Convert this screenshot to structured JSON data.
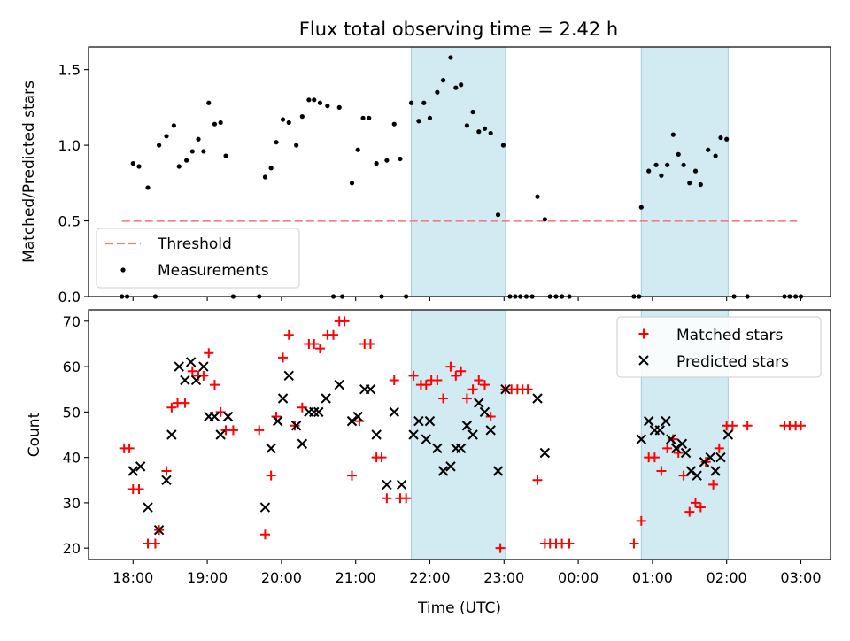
{
  "title": "Flux total observing time = 2.42 h",
  "colors": {
    "measurements": "#000000",
    "threshold": "#f08080",
    "matched": "#ff0000",
    "predicted": "#000000",
    "window": "#add8e6"
  },
  "chart_data": [
    {
      "type": "scatter",
      "panel": "top",
      "ylabel": "Matched/Predicted stars",
      "xlabel": "",
      "xlim_hours": [
        17.4,
        27.4
      ],
      "ylim": [
        0,
        1.65
      ],
      "yticks": [
        0.0,
        0.5,
        1.0,
        1.5
      ],
      "ytick_labels": [
        "0.0",
        "0.5",
        "1.0",
        "1.5"
      ],
      "shaded_windows_hours": [
        [
          21.75,
          23.02
        ],
        [
          24.85,
          26.02
        ]
      ],
      "threshold": {
        "name": "Threshold",
        "value": 0.5,
        "x_range_hours": [
          17.85,
          26.95
        ]
      },
      "legend": [
        "Threshold",
        "Measurements"
      ],
      "legend_location": "lower-left",
      "series": [
        {
          "name": "Measurements",
          "points": [
            [
              17.85,
              0
            ],
            [
              17.92,
              0
            ],
            [
              18.0,
              0.88
            ],
            [
              18.08,
              0.86
            ],
            [
              18.2,
              0.72
            ],
            [
              18.3,
              0
            ],
            [
              18.35,
              1.0
            ],
            [
              18.45,
              1.06
            ],
            [
              18.55,
              1.13
            ],
            [
              18.62,
              0.86
            ],
            [
              18.72,
              0.9
            ],
            [
              18.8,
              0.96
            ],
            [
              18.88,
              1.04
            ],
            [
              18.95,
              0.96
            ],
            [
              19.02,
              1.28
            ],
            [
              19.1,
              1.14
            ],
            [
              19.18,
              1.15
            ],
            [
              19.25,
              0.93
            ],
            [
              19.35,
              0
            ],
            [
              19.7,
              0
            ],
            [
              19.78,
              0.79
            ],
            [
              19.86,
              0.85
            ],
            [
              19.93,
              1.02
            ],
            [
              20.02,
              1.17
            ],
            [
              20.1,
              1.15
            ],
            [
              20.2,
              1.0
            ],
            [
              20.28,
              1.19
            ],
            [
              20.37,
              1.3
            ],
            [
              20.44,
              1.3
            ],
            [
              20.52,
              1.28
            ],
            [
              20.62,
              1.26
            ],
            [
              20.7,
              0
            ],
            [
              20.78,
              1.25
            ],
            [
              20.82,
              0
            ],
            [
              20.95,
              0.75
            ],
            [
              21.03,
              0.97
            ],
            [
              21.1,
              1.18
            ],
            [
              21.18,
              1.18
            ],
            [
              21.28,
              0.88
            ],
            [
              21.35,
              0
            ],
            [
              21.42,
              0.9
            ],
            [
              21.52,
              1.14
            ],
            [
              21.6,
              0.91
            ],
            [
              21.68,
              0
            ],
            [
              21.75,
              1.28
            ],
            [
              21.85,
              1.16
            ],
            [
              21.92,
              1.28
            ],
            [
              22.0,
              1.18
            ],
            [
              22.1,
              1.35
            ],
            [
              22.18,
              1.43
            ],
            [
              22.28,
              1.58
            ],
            [
              22.35,
              1.38
            ],
            [
              22.42,
              1.4
            ],
            [
              22.5,
              1.13
            ],
            [
              22.58,
              1.22
            ],
            [
              22.66,
              1.09
            ],
            [
              22.74,
              1.11
            ],
            [
              22.82,
              1.08
            ],
            [
              22.92,
              0.54
            ],
            [
              22.99,
              1.0
            ],
            [
              23.08,
              0
            ],
            [
              23.15,
              0
            ],
            [
              23.22,
              0
            ],
            [
              23.3,
              0
            ],
            [
              23.38,
              0
            ],
            [
              23.45,
              0.66
            ],
            [
              23.55,
              0.51
            ],
            [
              23.62,
              0
            ],
            [
              23.7,
              0
            ],
            [
              23.78,
              0
            ],
            [
              23.88,
              0
            ],
            [
              24.75,
              0
            ],
            [
              24.82,
              0
            ],
            [
              24.85,
              0.59
            ],
            [
              24.95,
              0.83
            ],
            [
              25.05,
              0.87
            ],
            [
              25.12,
              0.8
            ],
            [
              25.2,
              0.87
            ],
            [
              25.28,
              1.07
            ],
            [
              25.35,
              0.94
            ],
            [
              25.42,
              0.87
            ],
            [
              25.5,
              0.75
            ],
            [
              25.58,
              0.83
            ],
            [
              25.65,
              0.74
            ],
            [
              25.75,
              0.97
            ],
            [
              25.85,
              0.93
            ],
            [
              25.92,
              1.05
            ],
            [
              26.0,
              1.04
            ],
            [
              26.1,
              0
            ],
            [
              26.28,
              0
            ],
            [
              26.78,
              0
            ],
            [
              26.85,
              0
            ],
            [
              26.93,
              0
            ],
            [
              27.0,
              0
            ]
          ]
        }
      ]
    },
    {
      "type": "scatter",
      "panel": "bottom",
      "ylabel": "Count",
      "xlabel": "Time (UTC)",
      "xlim_hours": [
        17.4,
        27.4
      ],
      "ylim": [
        17.5,
        72.5
      ],
      "yticks": [
        20,
        30,
        40,
        50,
        60,
        70
      ],
      "ytick_labels": [
        "20",
        "30",
        "40",
        "50",
        "60",
        "70"
      ],
      "xticks_hours": [
        18,
        19,
        20,
        21,
        22,
        23,
        24,
        25,
        26,
        27
      ],
      "xtick_labels": [
        "18:00",
        "19:00",
        "20:00",
        "21:00",
        "22:00",
        "23:00",
        "00:00",
        "01:00",
        "02:00",
        "03:00"
      ],
      "shaded_windows_hours": [
        [
          21.75,
          23.02
        ],
        [
          24.85,
          26.02
        ]
      ],
      "legend": [
        "Matched stars",
        "Predicted stars"
      ],
      "legend_location": "upper-right",
      "series": [
        {
          "name": "Matched stars",
          "marker": "+",
          "points": [
            [
              17.88,
              42
            ],
            [
              17.95,
              42
            ],
            [
              18.0,
              33
            ],
            [
              18.08,
              33
            ],
            [
              18.2,
              21
            ],
            [
              18.3,
              21
            ],
            [
              18.35,
              24
            ],
            [
              18.45,
              37
            ],
            [
              18.52,
              51
            ],
            [
              18.6,
              52
            ],
            [
              18.7,
              52
            ],
            [
              18.8,
              59
            ],
            [
              18.88,
              58
            ],
            [
              18.95,
              58
            ],
            [
              19.02,
              63
            ],
            [
              19.1,
              56
            ],
            [
              19.18,
              50
            ],
            [
              19.25,
              46
            ],
            [
              19.35,
              46
            ],
            [
              19.7,
              46
            ],
            [
              19.78,
              23
            ],
            [
              19.86,
              36
            ],
            [
              19.93,
              49
            ],
            [
              20.02,
              62
            ],
            [
              20.1,
              67
            ],
            [
              20.18,
              47
            ],
            [
              20.28,
              51
            ],
            [
              20.37,
              65
            ],
            [
              20.44,
              65
            ],
            [
              20.52,
              64
            ],
            [
              20.62,
              67
            ],
            [
              20.7,
              67
            ],
            [
              20.78,
              70
            ],
            [
              20.85,
              70
            ],
            [
              20.95,
              36
            ],
            [
              21.05,
              48
            ],
            [
              21.12,
              65
            ],
            [
              21.2,
              65
            ],
            [
              21.28,
              40
            ],
            [
              21.35,
              40
            ],
            [
              21.42,
              31
            ],
            [
              21.52,
              57
            ],
            [
              21.6,
              31
            ],
            [
              21.68,
              31
            ],
            [
              21.78,
              58
            ],
            [
              21.88,
              56
            ],
            [
              21.95,
              56
            ],
            [
              22.02,
              57
            ],
            [
              22.1,
              57
            ],
            [
              22.18,
              53
            ],
            [
              22.28,
              60
            ],
            [
              22.35,
              58
            ],
            [
              22.42,
              59
            ],
            [
              22.5,
              53
            ],
            [
              22.58,
              55
            ],
            [
              22.66,
              57
            ],
            [
              22.74,
              56
            ],
            [
              22.82,
              49
            ],
            [
              22.95,
              20
            ],
            [
              23.02,
              55
            ],
            [
              23.1,
              55
            ],
            [
              23.18,
              55
            ],
            [
              23.25,
              55
            ],
            [
              23.32,
              55
            ],
            [
              23.45,
              35
            ],
            [
              23.55,
              21
            ],
            [
              23.62,
              21
            ],
            [
              23.7,
              21
            ],
            [
              23.78,
              21
            ],
            [
              23.88,
              21
            ],
            [
              24.75,
              21
            ],
            [
              24.85,
              26
            ],
            [
              24.95,
              40
            ],
            [
              25.03,
              40
            ],
            [
              25.12,
              37
            ],
            [
              25.2,
              42
            ],
            [
              25.28,
              44
            ],
            [
              25.35,
              41
            ],
            [
              25.42,
              36
            ],
            [
              25.5,
              28
            ],
            [
              25.58,
              30
            ],
            [
              25.65,
              29
            ],
            [
              25.72,
              39
            ],
            [
              25.82,
              34
            ],
            [
              25.9,
              42
            ],
            [
              26.0,
              47
            ],
            [
              26.08,
              47
            ],
            [
              26.28,
              47
            ],
            [
              26.78,
              47
            ],
            [
              26.85,
              47
            ],
            [
              26.93,
              47
            ],
            [
              27.0,
              47
            ]
          ]
        },
        {
          "name": "Predicted stars",
          "marker": "x",
          "points": [
            [
              18.0,
              37
            ],
            [
              18.1,
              38
            ],
            [
              18.2,
              29
            ],
            [
              18.35,
              24
            ],
            [
              18.45,
              35
            ],
            [
              18.52,
              45
            ],
            [
              18.62,
              60
            ],
            [
              18.7,
              57
            ],
            [
              18.78,
              61
            ],
            [
              18.85,
              57
            ],
            [
              18.95,
              60
            ],
            [
              19.02,
              49
            ],
            [
              19.1,
              49
            ],
            [
              19.18,
              45
            ],
            [
              19.28,
              49
            ],
            [
              19.78,
              29
            ],
            [
              19.86,
              42
            ],
            [
              19.95,
              48
            ],
            [
              20.02,
              53
            ],
            [
              20.1,
              58
            ],
            [
              20.2,
              47
            ],
            [
              20.28,
              43
            ],
            [
              20.37,
              50
            ],
            [
              20.44,
              50
            ],
            [
              20.5,
              50
            ],
            [
              20.6,
              53
            ],
            [
              20.78,
              56
            ],
            [
              20.95,
              48
            ],
            [
              21.03,
              49
            ],
            [
              21.12,
              55
            ],
            [
              21.2,
              55
            ],
            [
              21.28,
              45
            ],
            [
              21.42,
              34
            ],
            [
              21.52,
              50
            ],
            [
              21.62,
              34
            ],
            [
              21.78,
              45
            ],
            [
              21.85,
              48
            ],
            [
              21.95,
              44
            ],
            [
              22.0,
              48
            ],
            [
              22.1,
              42
            ],
            [
              22.18,
              37
            ],
            [
              22.28,
              38
            ],
            [
              22.35,
              42
            ],
            [
              22.42,
              42
            ],
            [
              22.5,
              47
            ],
            [
              22.58,
              45
            ],
            [
              22.66,
              52
            ],
            [
              22.74,
              50
            ],
            [
              22.82,
              46
            ],
            [
              22.92,
              37
            ],
            [
              23.02,
              55
            ],
            [
              23.45,
              53
            ],
            [
              23.55,
              41
            ],
            [
              24.85,
              44
            ],
            [
              24.95,
              48
            ],
            [
              25.03,
              46
            ],
            [
              25.1,
              46
            ],
            [
              25.18,
              48
            ],
            [
              25.25,
              44
            ],
            [
              25.32,
              42
            ],
            [
              25.4,
              43
            ],
            [
              25.45,
              41
            ],
            [
              25.52,
              37
            ],
            [
              25.6,
              36
            ],
            [
              25.7,
              39
            ],
            [
              25.78,
              40
            ],
            [
              25.85,
              37
            ],
            [
              25.92,
              40
            ],
            [
              26.02,
              45
            ]
          ]
        }
      ]
    }
  ]
}
